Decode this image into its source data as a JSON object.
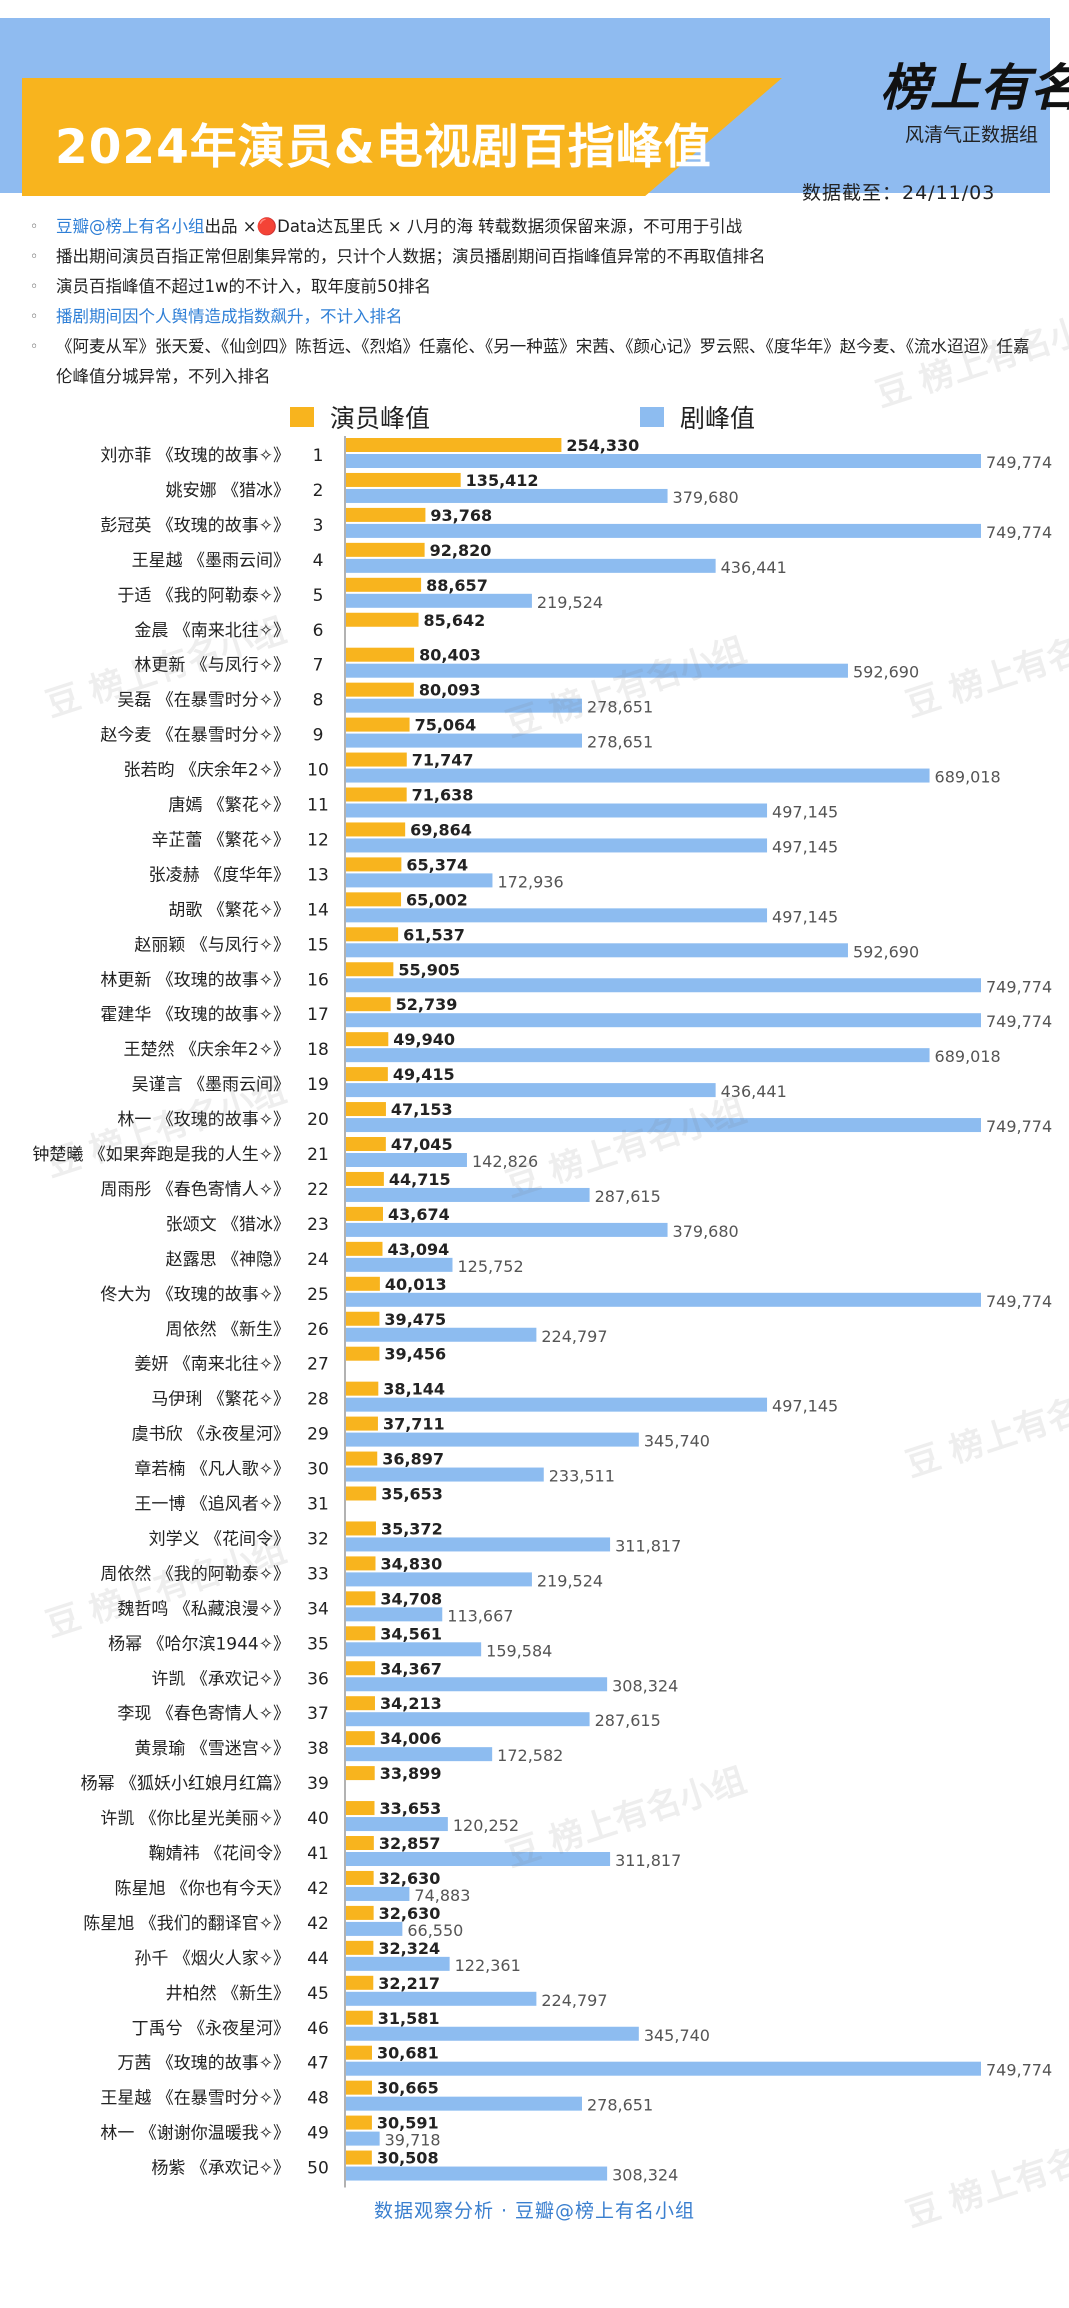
{
  "header": {
    "title": "2024年演员&电视剧百指峰值",
    "brand_main": "榜上有名",
    "brand_sub": "风清气正数据组",
    "cutoff": "数据截至：24/11/03"
  },
  "notes": [
    {
      "pre": "豆瓣@榜上有名小组",
      "rest": "出品 ×🔴Data达瓦里氏 × 八月的海 转载数据须保留来源，不可用于引战"
    },
    {
      "text": "播出期间演员百指正常但剧集异常的，只计个人数据；演员播剧期间百指峰值异常的不再取值排名"
    },
    {
      "text": "演员百指峰值不超过1w的不计入，取年度前50排名"
    },
    {
      "text": "播剧期间因个人舆情造成指数飙升，不计入排名"
    },
    {
      "text": "《阿麦从军》张天爱、《仙剑四》陈哲远、《烈焰》任嘉伦、《另一种蓝》宋茜、《颜心记》罗云熙、《度华年》赵今麦、《流水迢迢》任嘉伦峰值分城异常，不列入排名"
    }
  ],
  "footer": "数据观察分析 · 豆瓣@榜上有名小组",
  "watermark": "豆 榜上有名小组",
  "colors": {
    "actor": "#f8b41e",
    "drama": "#8dbcf0"
  },
  "chart_data": {
    "type": "bar",
    "title": "2024年演员&电视剧百指峰值",
    "orientation": "horizontal",
    "legend": "top",
    "series": [
      {
        "name": "演员峰值"
      },
      {
        "name": "剧峰值"
      }
    ],
    "rows": [
      {
        "rank": "1",
        "name": "刘亦菲 《玫瑰的故事✧》",
        "actor": 254330,
        "drama": 749774
      },
      {
        "rank": "2",
        "name": "姚安娜 《猎冰》",
        "actor": 135412,
        "drama": 379680
      },
      {
        "rank": "3",
        "name": "彭冠英 《玫瑰的故事✧》",
        "actor": 93768,
        "drama": 749774
      },
      {
        "rank": "4",
        "name": "王星越 《墨雨云间》",
        "actor": 92820,
        "drama": 436441
      },
      {
        "rank": "5",
        "name": "于适 《我的阿勒泰✧》",
        "actor": 88657,
        "drama": 219524
      },
      {
        "rank": "6",
        "name": "金晨 《南来北往✧》",
        "actor": 85642,
        "drama": null
      },
      {
        "rank": "7",
        "name": "林更新 《与凤行✧》",
        "actor": 80403,
        "drama": 592690
      },
      {
        "rank": "8",
        "name": "吴磊 《在暴雪时分✧》",
        "actor": 80093,
        "drama": 278651
      },
      {
        "rank": "9",
        "name": "赵今麦 《在暴雪时分✧》",
        "actor": 75064,
        "drama": 278651
      },
      {
        "rank": "10",
        "name": "张若昀 《庆余年2✧》",
        "actor": 71747,
        "drama": 689018
      },
      {
        "rank": "11",
        "name": "唐嫣 《繁花✧》",
        "actor": 71638,
        "drama": 497145
      },
      {
        "rank": "12",
        "name": "辛芷蕾 《繁花✧》",
        "actor": 69864,
        "drama": 497145
      },
      {
        "rank": "13",
        "name": "张凌赫 《度华年》",
        "actor": 65374,
        "drama": 172936
      },
      {
        "rank": "14",
        "name": "胡歌 《繁花✧》",
        "actor": 65002,
        "drama": 497145
      },
      {
        "rank": "15",
        "name": "赵丽颖 《与凤行✧》",
        "actor": 61537,
        "drama": 592690
      },
      {
        "rank": "16",
        "name": "林更新 《玫瑰的故事✧》",
        "actor": 55905,
        "drama": 749774
      },
      {
        "rank": "17",
        "name": "霍建华 《玫瑰的故事✧》",
        "actor": 52739,
        "drama": 749774
      },
      {
        "rank": "18",
        "name": "王楚然 《庆余年2✧》",
        "actor": 49940,
        "drama": 689018
      },
      {
        "rank": "19",
        "name": "吴谨言 《墨雨云间》",
        "actor": 49415,
        "drama": 436441
      },
      {
        "rank": "20",
        "name": "林一 《玫瑰的故事✧》",
        "actor": 47153,
        "drama": 749774
      },
      {
        "rank": "21",
        "name": "钟楚曦 《如果奔跑是我的人生✧》",
        "actor": 47045,
        "drama": 142826
      },
      {
        "rank": "22",
        "name": "周雨彤 《春色寄情人✧》",
        "actor": 44715,
        "drama": 287615
      },
      {
        "rank": "23",
        "name": "张颂文 《猎冰》",
        "actor": 43674,
        "drama": 379680
      },
      {
        "rank": "24",
        "name": "赵露思 《神隐》",
        "actor": 43094,
        "drama": 125752
      },
      {
        "rank": "25",
        "name": "佟大为 《玫瑰的故事✧》",
        "actor": 40013,
        "drama": 749774
      },
      {
        "rank": "26",
        "name": "周依然 《新生》",
        "actor": 39475,
        "drama": 224797
      },
      {
        "rank": "27",
        "name": "姜妍 《南来北往✧》",
        "actor": 39456,
        "drama": null
      },
      {
        "rank": "28",
        "name": "马伊琍 《繁花✧》",
        "actor": 38144,
        "drama": 497145
      },
      {
        "rank": "29",
        "name": "虞书欣 《永夜星河》",
        "actor": 37711,
        "drama": 345740
      },
      {
        "rank": "30",
        "name": "章若楠 《凡人歌✧》",
        "actor": 36897,
        "drama": 233511
      },
      {
        "rank": "31",
        "name": "王一博 《追风者✧》",
        "actor": 35653,
        "drama": null
      },
      {
        "rank": "32",
        "name": "刘学义 《花间令》",
        "actor": 35372,
        "drama": 311817
      },
      {
        "rank": "33",
        "name": "周依然 《我的阿勒泰✧》",
        "actor": 34830,
        "drama": 219524
      },
      {
        "rank": "34",
        "name": "魏哲鸣 《私藏浪漫✧》",
        "actor": 34708,
        "drama": 113667
      },
      {
        "rank": "35",
        "name": "杨幂 《哈尔滨1944✧》",
        "actor": 34561,
        "drama": 159584
      },
      {
        "rank": "36",
        "name": "许凯 《承欢记✧》",
        "actor": 34367,
        "drama": 308324
      },
      {
        "rank": "37",
        "name": "李现 《春色寄情人✧》",
        "actor": 34213,
        "drama": 287615
      },
      {
        "rank": "38",
        "name": "黄景瑜 《雪迷宫✧》",
        "actor": 34006,
        "drama": 172582
      },
      {
        "rank": "39",
        "name": "杨幂 《狐妖小红娘月红篇》",
        "actor": 33899,
        "drama": null
      },
      {
        "rank": "40",
        "name": "许凯 《你比星光美丽✧》",
        "actor": 33653,
        "drama": 120252
      },
      {
        "rank": "41",
        "name": "鞠婧祎 《花间令》",
        "actor": 32857,
        "drama": 311817
      },
      {
        "rank": "42",
        "name": "陈星旭 《你也有今天》",
        "actor": 32630,
        "drama": 74883
      },
      {
        "rank": "42",
        "name": "陈星旭 《我们的翻译官✧》",
        "actor": 32630,
        "drama": 66550
      },
      {
        "rank": "44",
        "name": "孙千 《烟火人家✧》",
        "actor": 32324,
        "drama": 122361
      },
      {
        "rank": "45",
        "name": "井柏然 《新生》",
        "actor": 32217,
        "drama": 224797
      },
      {
        "rank": "46",
        "name": "丁禹兮 《永夜星河》",
        "actor": 31581,
        "drama": 345740
      },
      {
        "rank": "47",
        "name": "万茜 《玫瑰的故事✧》",
        "actor": 30681,
        "drama": 749774
      },
      {
        "rank": "48",
        "name": "王星越 《在暴雪时分✧》",
        "actor": 30665,
        "drama": 278651
      },
      {
        "rank": "49",
        "name": "林一 《谢谢你温暖我✧》",
        "actor": 30591,
        "drama": 39718
      },
      {
        "rank": "50",
        "name": "杨紫 《承欢记✧》",
        "actor": 30508,
        "drama": 308324
      }
    ]
  }
}
